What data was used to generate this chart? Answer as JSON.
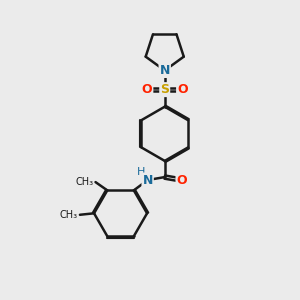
{
  "bg_color": "#ebebeb",
  "bond_color": "#1a1a1a",
  "bond_width": 1.8,
  "dbo": 0.055,
  "atom_colors": {
    "N": "#1a6b9a",
    "O": "#ff2200",
    "S": "#c8a000",
    "C": "#1a1a1a"
  },
  "font_size": 9,
  "fig_size": [
    3.0,
    3.0
  ],
  "dpi": 100,
  "xlim": [
    0,
    10
  ],
  "ylim": [
    0,
    10
  ]
}
